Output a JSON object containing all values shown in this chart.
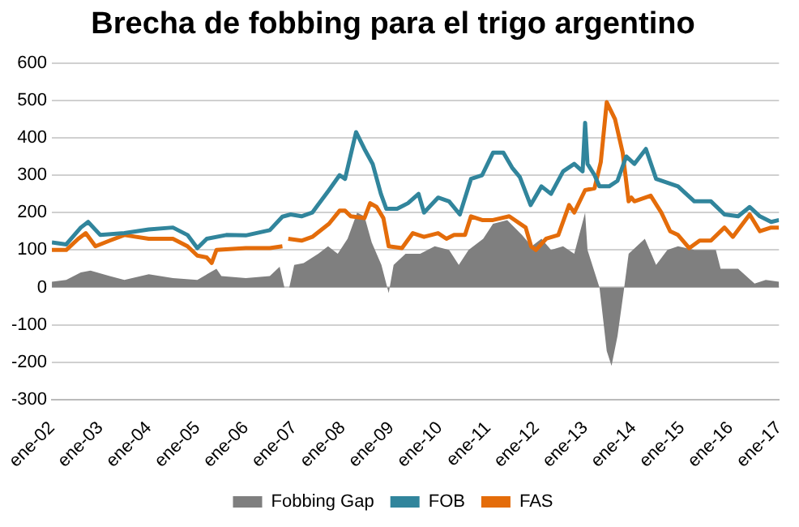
{
  "chart_data": {
    "type": "line",
    "title": "Brecha de fobbing para el trigo argentino",
    "xlim": [
      "2002-01",
      "2017-01"
    ],
    "xticks": [
      {
        "value": "2002-01",
        "label": "ene-02"
      },
      {
        "value": "2003-01",
        "label": "ene-03"
      },
      {
        "value": "2004-01",
        "label": "ene-04"
      },
      {
        "value": "2005-01",
        "label": "ene-05"
      },
      {
        "value": "2006-01",
        "label": "ene-06"
      },
      {
        "value": "2007-01",
        "label": "ene-07"
      },
      {
        "value": "2008-01",
        "label": "ene-08"
      },
      {
        "value": "2009-01",
        "label": "ene-09"
      },
      {
        "value": "2010-01",
        "label": "ene-10"
      },
      {
        "value": "2011-01",
        "label": "ene-11"
      },
      {
        "value": "2012-01",
        "label": "ene-12"
      },
      {
        "value": "2013-01",
        "label": "ene-13"
      },
      {
        "value": "2014-01",
        "label": "ene-14"
      },
      {
        "value": "2015-01",
        "label": "ene-15"
      },
      {
        "value": "2016-01",
        "label": "ene-16"
      },
      {
        "value": "2017-01",
        "label": "ene-17"
      }
    ],
    "ylim": [
      -300,
      600
    ],
    "yticks": [
      -300,
      -200,
      -100,
      0,
      100,
      200,
      300,
      400,
      500,
      600
    ],
    "grid": "y",
    "legend": "bottom",
    "marker": "none",
    "series": [
      {
        "name": "Fobbing Gap",
        "type": "area",
        "color": "#7f7f7f",
        "x": [
          "2002-01-01",
          "2002-04-19",
          "2002-08-07",
          "2002-10-19",
          "2003-03-13",
          "2003-07-01",
          "2004-01-01",
          "2004-07-01",
          "2005-01-01",
          "2005-05-25",
          "2005-07-01",
          "2006-01-01",
          "2006-07-01",
          "2006-09-13",
          "2006-10-19",
          "2006-11-25",
          "2007-01-01",
          "2007-03-13",
          "2007-07-01",
          "2007-09-13",
          "2007-11-25",
          "2008-02-07",
          "2008-04-19",
          "2008-06-13",
          "2008-08-07",
          "2008-10-19",
          "2008-12-13",
          "2009-01-19",
          "2009-04-19",
          "2009-08-07",
          "2009-11-25",
          "2010-03-13",
          "2010-05-25",
          "2010-08-07",
          "2010-11-25",
          "2011-02-07",
          "2011-05-25",
          "2011-09-13",
          "2011-11-25",
          "2012-02-07",
          "2012-04-19",
          "2012-07-19",
          "2012-10-11",
          "2013-01-01",
          "2013-01-19",
          "2013-04-19",
          "2013-04-29",
          "2013-06-13",
          "2013-07-19",
          "2013-09-02",
          "2013-10-19",
          "2013-11-25",
          "2014-03-27",
          "2014-06-20",
          "2014-09-13",
          "2014-12-02",
          "2015-04-04",
          "2015-09-13",
          "2015-10-19",
          "2016-02-28",
          "2016-07-01",
          "2016-09-23",
          "2017-01-01"
        ],
        "values": [
          15,
          20,
          40,
          45,
          30,
          20,
          35,
          25,
          20,
          50,
          30,
          25,
          30,
          55,
          0,
          0,
          60,
          65,
          90,
          110,
          90,
          130,
          200,
          190,
          120,
          60,
          -15,
          60,
          90,
          90,
          110,
          100,
          60,
          100,
          130,
          170,
          180,
          140,
          110,
          130,
          100,
          110,
          90,
          200,
          100,
          0,
          -30,
          -170,
          -210,
          -130,
          -10,
          90,
          130,
          60,
          100,
          110,
          100,
          100,
          50,
          50,
          10,
          20,
          15
        ]
      },
      {
        "name": "FOB",
        "type": "line",
        "color": "#31859c",
        "x": [
          "2002-01-01",
          "2002-04-19",
          "2002-08-07",
          "2002-10-01",
          "2003-01-01",
          "2003-07-01",
          "2004-01-01",
          "2004-07-01",
          "2004-10-19",
          "2005-01-01",
          "2005-03-13",
          "2005-08-07",
          "2006-01-01",
          "2006-07-01",
          "2006-10-04",
          "2006-12-05",
          "2007-02-25",
          "2007-05-17",
          "2007-09-20",
          "2007-12-09",
          "2008-01-19",
          "2008-04-11",
          "2008-06-13",
          "2008-08-14",
          "2008-10-15",
          "2008-11-25",
          "2009-02-14",
          "2009-05-07",
          "2009-07-26",
          "2009-09-05",
          "2009-12-20",
          "2010-03-13",
          "2010-06-02",
          "2010-08-25",
          "2010-11-17",
          "2011-02-07",
          "2011-04-26",
          "2011-07-01",
          "2011-08-28",
          "2011-11-17",
          "2012-02-07",
          "2012-04-19",
          "2012-07-19",
          "2012-10-11",
          "2012-12-13",
          "2013-01-01",
          "2013-01-19",
          "2013-03-13",
          "2013-04-19",
          "2013-07-01",
          "2013-09-02",
          "2013-11-07",
          "2014-01-07",
          "2014-04-04",
          "2014-06-20",
          "2014-09-13",
          "2014-12-02",
          "2015-04-04",
          "2015-08-07",
          "2015-11-17",
          "2016-02-28",
          "2016-05-25",
          "2016-08-10",
          "2016-11-03",
          "2017-01-01"
        ],
        "values": [
          120,
          115,
          160,
          175,
          140,
          145,
          155,
          160,
          140,
          105,
          130,
          140,
          139,
          153,
          189,
          195,
          190,
          200,
          260,
          300,
          290,
          415,
          370,
          330,
          250,
          210,
          210,
          225,
          250,
          200,
          240,
          230,
          195,
          290,
          300,
          360,
          360,
          320,
          295,
          220,
          270,
          250,
          310,
          330,
          310,
          440,
          330,
          300,
          270,
          270,
          285,
          350,
          330,
          370,
          290,
          280,
          270,
          230,
          230,
          195,
          190,
          215,
          190,
          175,
          180
        ]
      },
      {
        "name": "FAS",
        "type": "line",
        "color": "#e46c0a",
        "x": [
          "2002-01-01",
          "2002-04-19",
          "2002-07-19",
          "2002-09-13",
          "2002-11-25",
          "2003-03-13",
          "2003-07-01",
          "2004-01-01",
          "2004-07-01",
          "2004-10-19",
          "2005-01-01",
          "2005-03-13",
          "2005-04-19",
          "2005-05-25",
          "2006-01-01",
          "2006-07-01",
          "2006-10-04",
          "2006-10-26",
          "2006-11-17",
          "2007-02-25",
          "2007-05-17",
          "2007-09-20",
          "2007-12-09",
          "2008-01-19",
          "2008-03-02",
          "2008-06-13",
          "2008-07-26",
          "2008-09-13",
          "2008-11-03",
          "2008-12-13",
          "2009-03-23",
          "2009-06-13",
          "2009-09-05",
          "2009-12-20",
          "2010-02-21",
          "2010-04-19",
          "2010-07-11",
          "2010-08-25",
          "2010-11-17",
          "2011-02-07",
          "2011-06-09",
          "2011-10-11",
          "2011-11-21",
          "2011-12-27",
          "2012-03-13",
          "2012-06-13",
          "2012-09-02",
          "2012-10-11",
          "2013-01-01",
          "2013-03-13",
          "2013-04-29",
          "2013-06-13",
          "2013-08-14",
          "2013-10-11",
          "2013-11-25",
          "2013-12-16",
          "2014-01-07",
          "2014-05-10",
          "2014-07-29",
          "2014-10-04",
          "2014-12-02",
          "2015-02-25",
          "2015-05-14",
          "2015-08-07",
          "2015-11-17",
          "2016-01-19",
          "2016-05-25",
          "2016-08-10",
          "2016-11-03",
          "2017-01-01"
        ],
        "values": [
          100,
          100,
          130,
          145,
          110,
          125,
          140,
          130,
          130,
          110,
          85,
          80,
          65,
          100,
          105,
          105,
          110,
          null,
          130,
          125,
          135,
          170,
          205,
          205,
          190,
          185,
          225,
          215,
          185,
          110,
          105,
          145,
          135,
          145,
          130,
          140,
          140,
          190,
          180,
          180,
          190,
          160,
          110,
          100,
          130,
          140,
          220,
          200,
          260,
          265,
          335,
          495,
          450,
          360,
          230,
          240,
          230,
          245,
          200,
          150,
          140,
          105,
          125,
          125,
          160,
          135,
          195,
          150,
          160,
          160
        ]
      }
    ]
  }
}
